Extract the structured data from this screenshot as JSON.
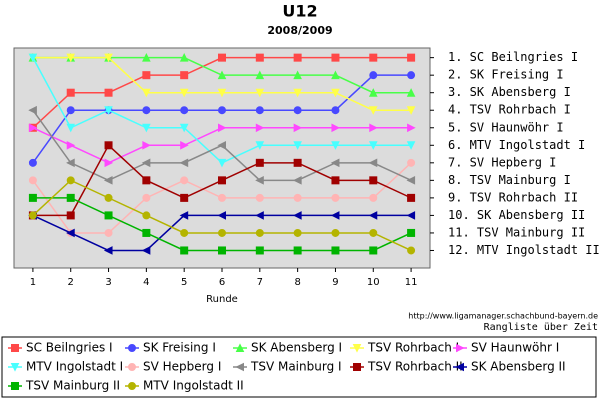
{
  "chart_data": {
    "type": "line",
    "title": "U12",
    "subtitle": "2008/2009",
    "x_label": "Runde",
    "source": "http://www.ligamanager.schachbund-bayern.de",
    "note": "Rangliste über Zeit",
    "x": [
      1,
      2,
      3,
      4,
      5,
      6,
      7,
      8,
      9,
      10,
      11
    ],
    "xlim": [
      0.5,
      11.5
    ],
    "xticks": [
      1,
      2,
      3,
      4,
      5,
      6,
      7,
      8,
      9,
      10,
      11
    ],
    "ylim": [
      13,
      0.45
    ],
    "y_inverted": true,
    "yticks": [
      {
        "value": 1,
        "label": "1. SC Beilngries I"
      },
      {
        "value": 2,
        "label": "2. SK Freising I"
      },
      {
        "value": 3,
        "label": "3. SK Abensberg I"
      },
      {
        "value": 4,
        "label": "4. TSV Rohrbach I"
      },
      {
        "value": 5,
        "label": "5. SV Haunwöhr I"
      },
      {
        "value": 6,
        "label": "6. MTV Ingolstadt I"
      },
      {
        "value": 7,
        "label": "7. SV Hepberg I"
      },
      {
        "value": 8,
        "label": "8. TSV Mainburg I"
      },
      {
        "value": 9,
        "label": "9. TSV Rohrbach II"
      },
      {
        "value": 10,
        "label": "10. SK Abensberg II"
      },
      {
        "value": 11,
        "label": "11. TSV Mainburg II"
      },
      {
        "value": 12,
        "label": "12. MTV Ingolstadt II"
      }
    ],
    "series": [
      {
        "name": "SC Beilngries I",
        "color": "#ff4848",
        "marker": "square",
        "values": [
          5,
          3,
          3,
          2,
          2,
          1,
          1,
          1,
          1,
          1,
          1
        ]
      },
      {
        "name": "SK Freising I",
        "color": "#4848ff",
        "marker": "circle",
        "values": [
          7,
          4,
          4,
          4,
          4,
          4,
          4,
          4,
          4,
          2,
          2
        ]
      },
      {
        "name": "SK Abensberg I",
        "color": "#48ff48",
        "marker": "triangle-up",
        "values": [
          1,
          1,
          1,
          1,
          1,
          2,
          2,
          2,
          2,
          3,
          3
        ]
      },
      {
        "name": "TSV Rohrbach I",
        "color": "#ffff48",
        "marker": "triangle-down",
        "values": [
          1,
          1,
          1,
          3,
          3,
          3,
          3,
          3,
          3,
          4,
          4
        ]
      },
      {
        "name": "SV Haunwöhr I",
        "color": "#ff48ff",
        "marker": "triangle-right",
        "values": [
          5,
          6,
          7,
          6,
          6,
          5,
          5,
          5,
          5,
          5,
          5
        ]
      },
      {
        "name": "MTV Ingolstadt I",
        "color": "#48ffff",
        "marker": "triangle-down",
        "values": [
          1,
          5,
          4,
          5,
          5,
          7,
          6,
          6,
          6,
          6,
          6
        ]
      },
      {
        "name": "SV Hepberg I",
        "color": "#ffb4b4",
        "marker": "circle",
        "values": [
          8,
          11,
          11,
          9,
          8,
          9,
          9,
          9,
          9,
          9,
          7
        ]
      },
      {
        "name": "TSV Mainburg I",
        "color": "#888888",
        "marker": "triangle-left",
        "values": [
          4,
          7,
          8,
          7,
          7,
          6,
          8,
          8,
          7,
          7,
          8
        ]
      },
      {
        "name": "TSV Rohrbach II",
        "color": "#a00000",
        "marker": "square",
        "values": [
          10,
          10,
          6,
          8,
          9,
          8,
          7,
          7,
          8,
          8,
          9
        ]
      },
      {
        "name": "SK Abensberg II",
        "color": "#0000a0",
        "marker": "triangle-left",
        "values": [
          10,
          11,
          12,
          12,
          10,
          10,
          10,
          10,
          10,
          10,
          10
        ]
      },
      {
        "name": "TSV Mainburg II",
        "color": "#00b400",
        "marker": "square",
        "values": [
          9,
          9,
          10,
          11,
          12,
          12,
          12,
          12,
          12,
          12,
          11
        ]
      },
      {
        "name": "MTV Ingolstadt II",
        "color": "#b4b400",
        "marker": "circle",
        "values": [
          10,
          8,
          9,
          10,
          11,
          11,
          11,
          11,
          11,
          11,
          12
        ]
      }
    ]
  }
}
